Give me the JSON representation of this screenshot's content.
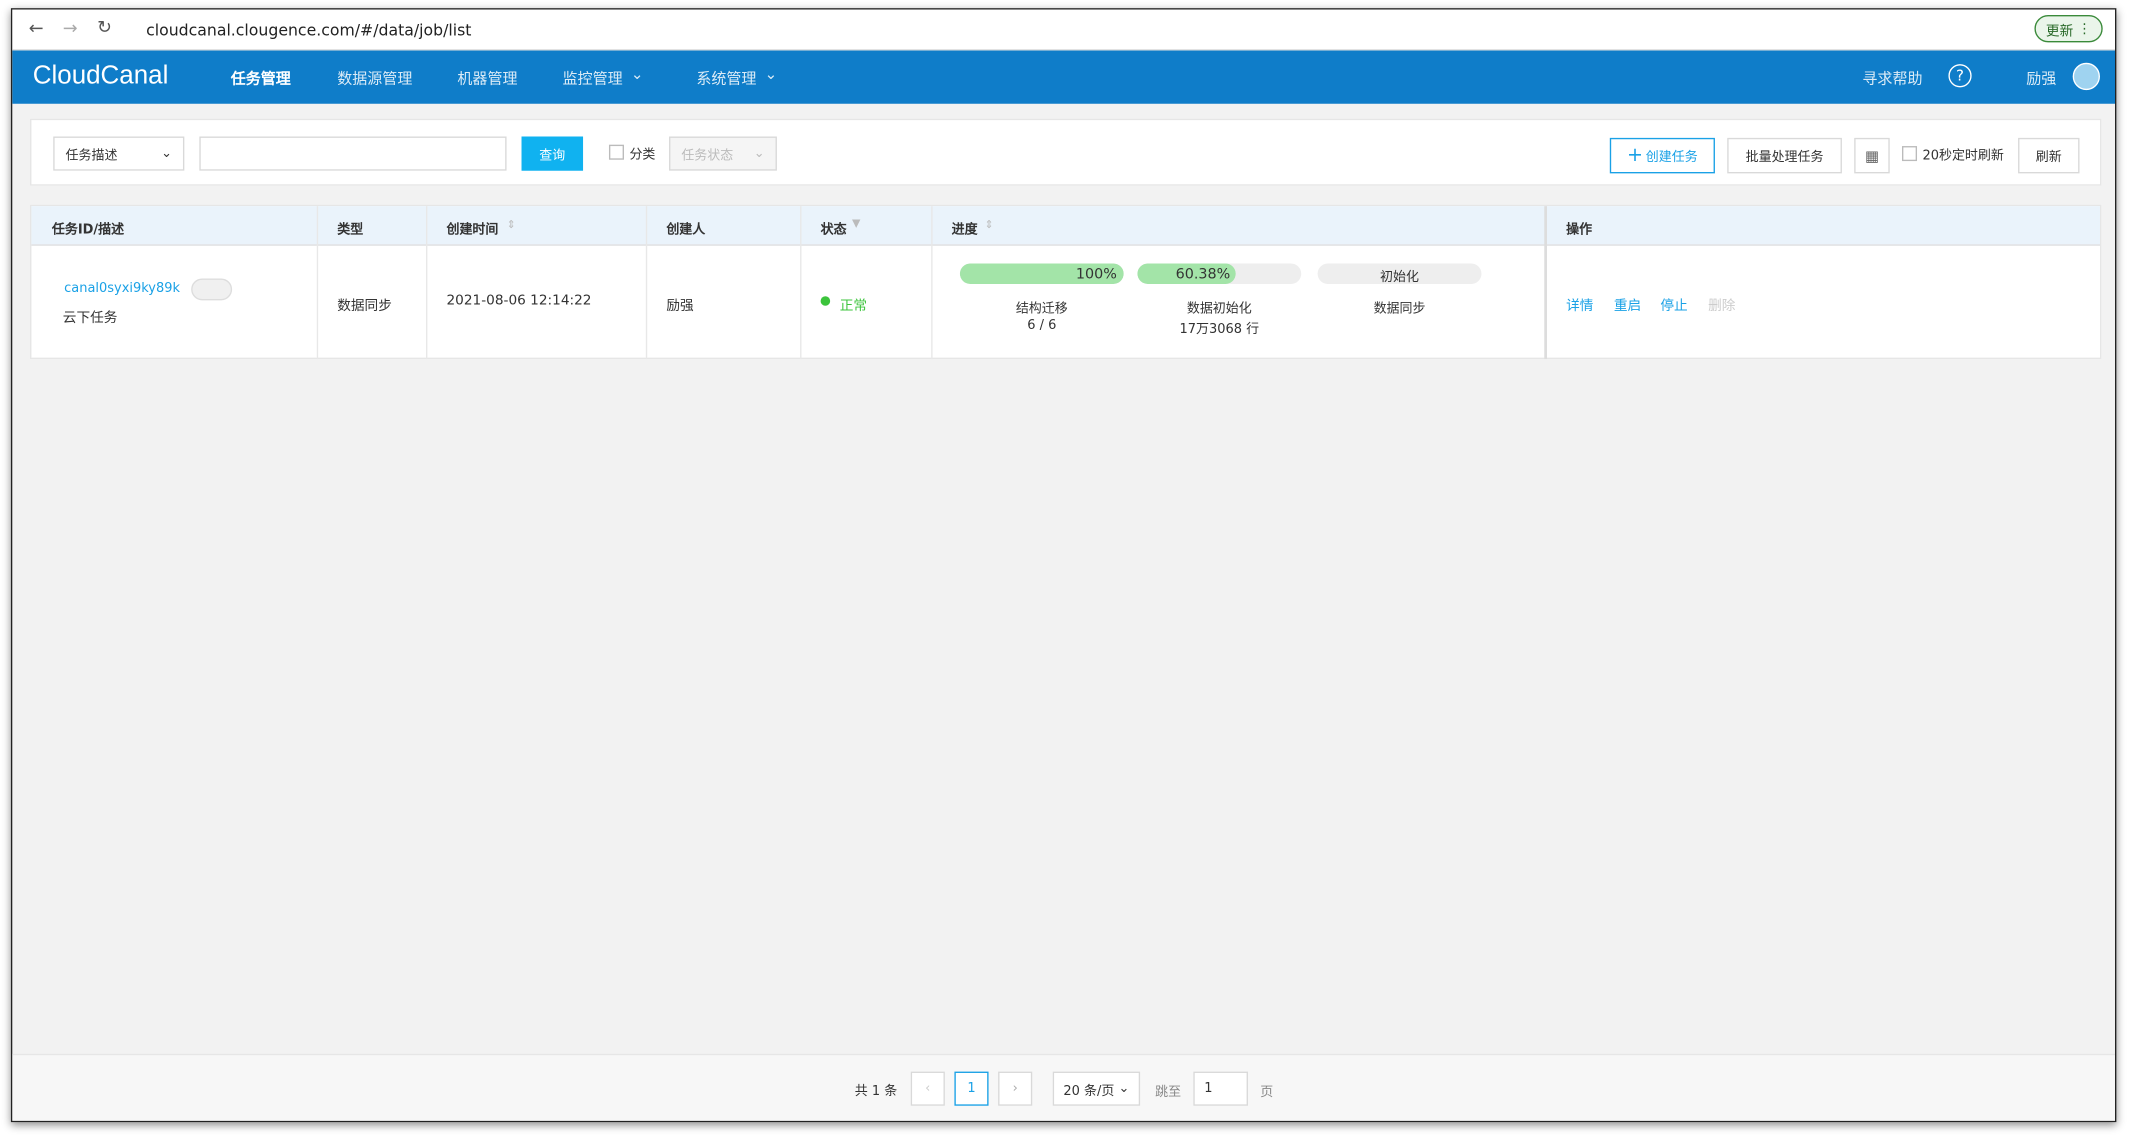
{
  "browser": {
    "url": "cloudcanal.clougence.com/#/data/job/list",
    "update_button": "更新"
  },
  "nav": {
    "logo": "CloudCanal",
    "items": [
      "任务管理",
      "数据源管理",
      "机器管理",
      "监控管理",
      "系统管理"
    ],
    "help": "寻求帮助",
    "user": "励强"
  },
  "toolbar": {
    "search_field": "任务描述",
    "query_button": "查询",
    "category_checkbox": "分类",
    "status_select": "任务状态",
    "create_button": "创建任务",
    "batch_button": "批量处理任务",
    "auto_refresh": "20秒定时刷新",
    "refresh_button": "刷新"
  },
  "table": {
    "headers": [
      "任务ID/描述",
      "类型",
      "创建时间",
      "创建人",
      "状态",
      "进度",
      "操作"
    ],
    "rows": [
      {
        "id": "canal0syxi9ky89k",
        "description": "云下任务",
        "type": "数据同步",
        "created": "2021-08-06 12:14:22",
        "creator": "励强",
        "status": "正常",
        "progress": [
          {
            "value": 100,
            "label": "100%",
            "name": "结构迁移",
            "detail": "6 / 6"
          },
          {
            "value": 60.38,
            "label": "60.38%",
            "name": "数据初始化",
            "detail": "17万3068 行"
          },
          {
            "label": "初始化",
            "name": "数据同步"
          }
        ],
        "actions": [
          "详情",
          "重启",
          "停止",
          "删除"
        ]
      }
    ]
  },
  "pagination": {
    "total": "共 1 条",
    "current_page": 1,
    "page_size": "20 条/页",
    "jump_label": "跳至",
    "jump_value": 1,
    "page_unit": "页"
  }
}
